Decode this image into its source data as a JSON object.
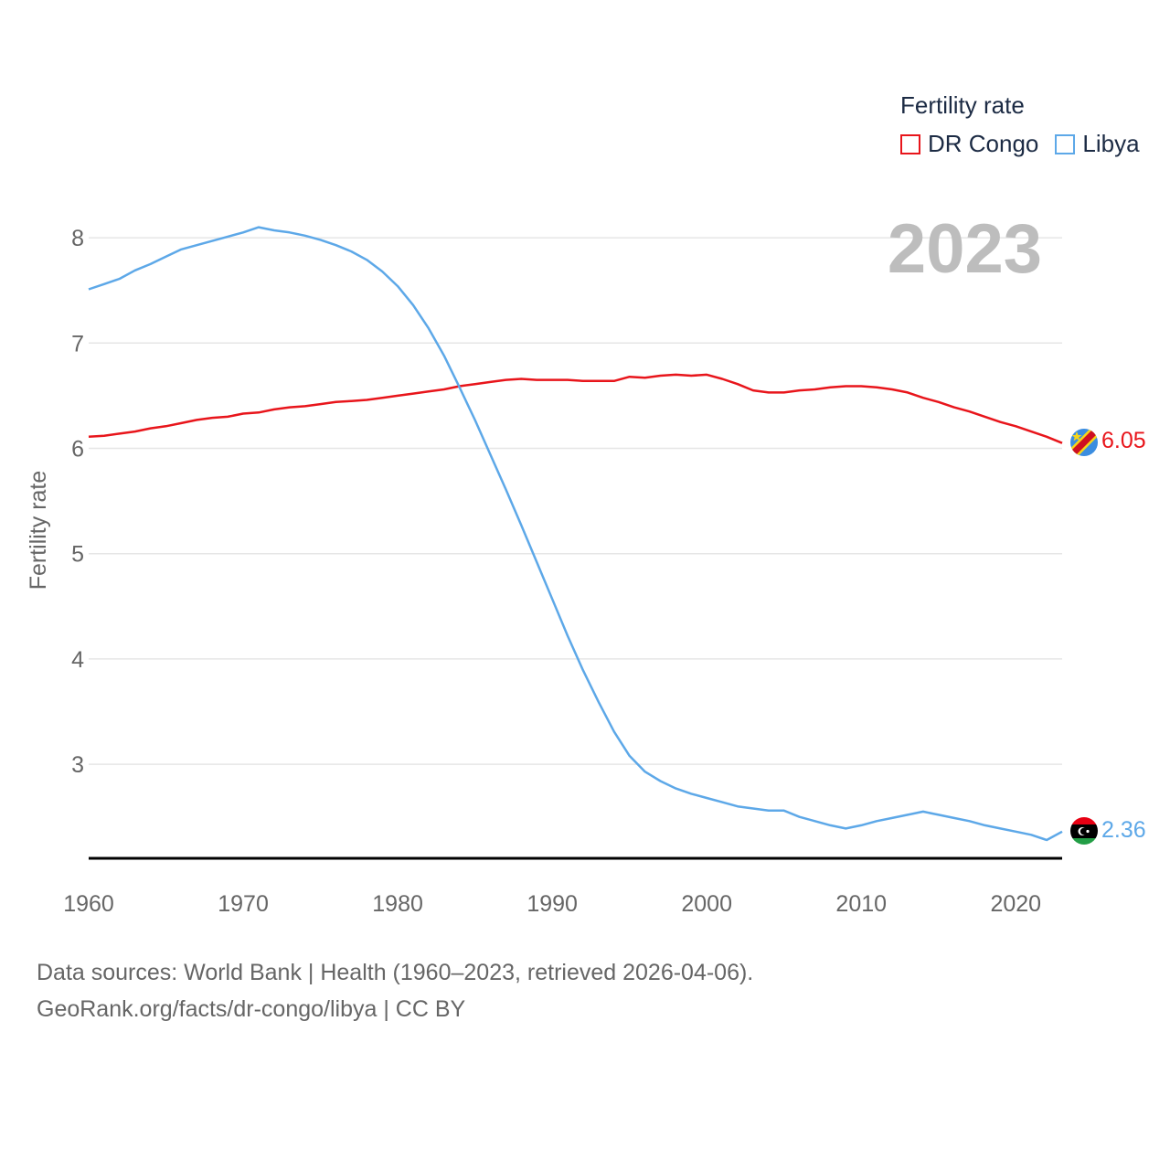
{
  "legend": {
    "title": "Fertility rate",
    "items": [
      {
        "label": "DR Congo",
        "color": "#e8151b"
      },
      {
        "label": "Libya",
        "color": "#5da8e8"
      }
    ]
  },
  "source": {
    "line1": "Data sources: World Bank | Health (1960–2023, retrieved 2026-04-06).",
    "line2": "GeoRank.org/facts/dr-congo/libya | CC BY"
  },
  "chart_data": {
    "type": "line",
    "title": "",
    "year_label": "2023",
    "xlabel": "",
    "ylabel": "Fertility rate",
    "xlim": [
      1960,
      2023
    ],
    "ylim": [
      2.1,
      8.5
    ],
    "x_ticks": [
      1960,
      1970,
      1980,
      1990,
      2000,
      2010,
      2020
    ],
    "y_ticks": [
      3,
      4,
      5,
      6,
      7,
      8
    ],
    "grid": true,
    "x": [
      1960,
      1961,
      1962,
      1963,
      1964,
      1965,
      1966,
      1967,
      1968,
      1969,
      1970,
      1971,
      1972,
      1973,
      1974,
      1975,
      1976,
      1977,
      1978,
      1979,
      1980,
      1981,
      1982,
      1983,
      1984,
      1985,
      1986,
      1987,
      1988,
      1989,
      1990,
      1991,
      1992,
      1993,
      1994,
      1995,
      1996,
      1997,
      1998,
      1999,
      2000,
      2001,
      2002,
      2003,
      2004,
      2005,
      2006,
      2007,
      2008,
      2009,
      2010,
      2011,
      2012,
      2013,
      2014,
      2015,
      2016,
      2017,
      2018,
      2019,
      2020,
      2021,
      2022,
      2023
    ],
    "series": [
      {
        "name": "DR Congo",
        "color": "#e8151b",
        "end_label": "6.05",
        "values": [
          6.11,
          6.12,
          6.14,
          6.16,
          6.19,
          6.21,
          6.24,
          6.27,
          6.29,
          6.3,
          6.33,
          6.34,
          6.37,
          6.39,
          6.4,
          6.42,
          6.44,
          6.45,
          6.46,
          6.48,
          6.5,
          6.52,
          6.54,
          6.56,
          6.59,
          6.61,
          6.63,
          6.65,
          6.66,
          6.65,
          6.65,
          6.65,
          6.64,
          6.64,
          6.64,
          6.68,
          6.67,
          6.69,
          6.7,
          6.69,
          6.7,
          6.66,
          6.61,
          6.55,
          6.53,
          6.53,
          6.55,
          6.56,
          6.58,
          6.59,
          6.59,
          6.58,
          6.56,
          6.53,
          6.48,
          6.44,
          6.39,
          6.35,
          6.3,
          6.25,
          6.21,
          6.16,
          6.11,
          6.05
        ]
      },
      {
        "name": "Libya",
        "color": "#5da8e8",
        "end_label": "2.36",
        "values": [
          7.51,
          7.56,
          7.61,
          7.69,
          7.75,
          7.82,
          7.89,
          7.93,
          7.97,
          8.01,
          8.05,
          8.1,
          8.07,
          8.05,
          8.02,
          7.98,
          7.93,
          7.87,
          7.79,
          7.68,
          7.54,
          7.36,
          7.14,
          6.88,
          6.58,
          6.27,
          5.94,
          5.61,
          5.27,
          4.92,
          4.57,
          4.22,
          3.89,
          3.59,
          3.31,
          3.08,
          2.93,
          2.84,
          2.77,
          2.72,
          2.68,
          2.64,
          2.6,
          2.58,
          2.56,
          2.56,
          2.5,
          2.46,
          2.42,
          2.39,
          2.42,
          2.46,
          2.49,
          2.52,
          2.55,
          2.52,
          2.49,
          2.46,
          2.42,
          2.39,
          2.36,
          2.33,
          2.28,
          2.36
        ]
      }
    ]
  }
}
